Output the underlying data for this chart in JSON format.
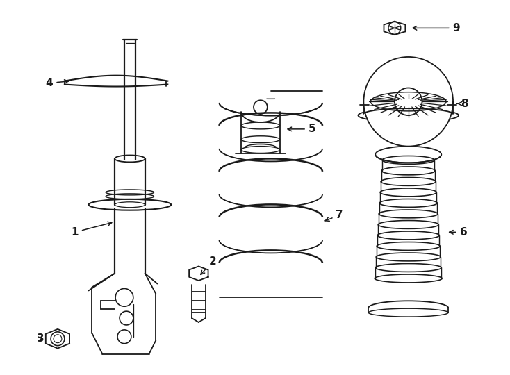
{
  "bg_color": "#ffffff",
  "line_color": "#1a1a1a",
  "fig_width": 7.34,
  "fig_height": 5.4,
  "dpi": 100
}
